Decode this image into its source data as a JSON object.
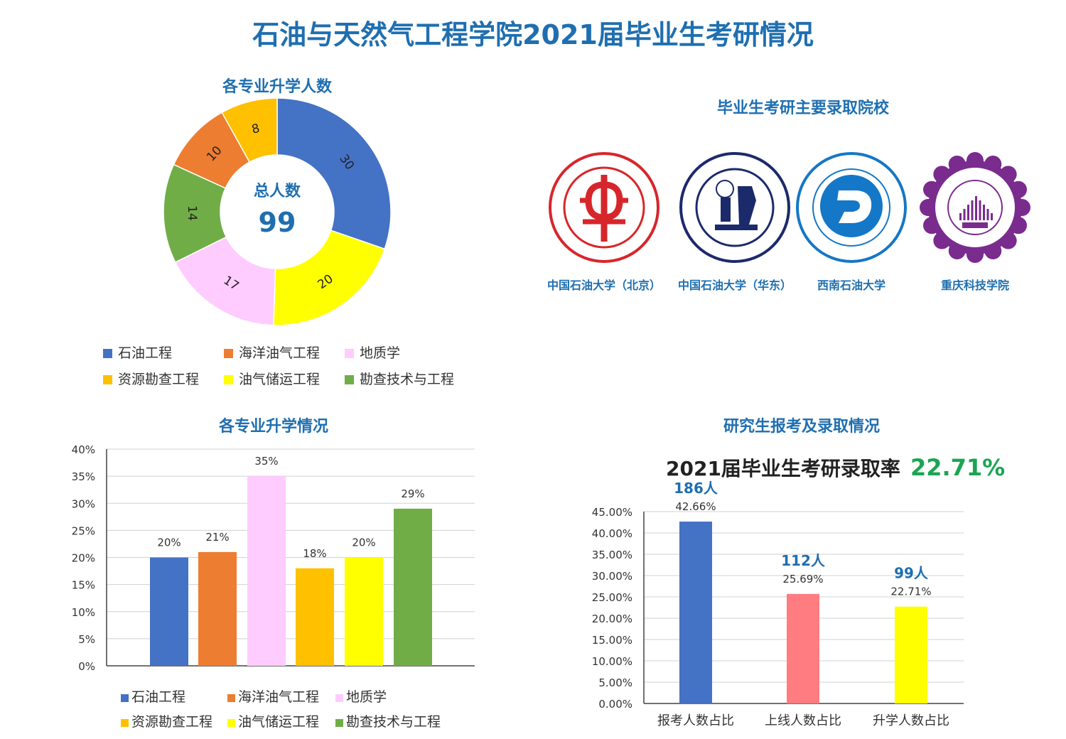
{
  "page_title": "石油与天然气工程学院2021届毕业生考研情况",
  "majors": [
    "石油工程",
    "海洋油气工程",
    "地质学",
    "资源勘查工程",
    "油气储运工程",
    "勘查技术与工程"
  ],
  "colors": {
    "石油工程": "#4472c4",
    "海洋油气工程": "#ed7d31",
    "地质学": "#ffccff",
    "资源勘查工程": "#ffc000",
    "油气储运工程": "#ffff00",
    "勘查技术与工程": "#70ad47",
    "title_blue": "#1f6fb0",
    "rate_green": "#1aa552"
  },
  "chart_data": [
    {
      "type": "pie",
      "title": "各专业升学人数",
      "center_label": "总人数",
      "center_value": "99",
      "slices": [
        {
          "name": "石油工程",
          "value": 30
        },
        {
          "name": "油气储运工程",
          "value": 20
        },
        {
          "name": "地质学",
          "value": 17
        },
        {
          "name": "勘查技术与工程",
          "value": 14
        },
        {
          "name": "海洋油气工程",
          "value": 10
        },
        {
          "name": "资源勘查工程",
          "value": 8
        }
      ],
      "legend": [
        "石油工程",
        "海洋油气工程",
        "地质学",
        "资源勘查工程",
        "油气储运工程",
        "勘查技术与工程"
      ],
      "legend_position": "bottom"
    },
    {
      "type": "bar",
      "title": "各专业升学情况",
      "categories": [
        "石油工程",
        "海洋油气工程",
        "地质学",
        "资源勘查工程",
        "油气储运工程",
        "勘查技术与工程"
      ],
      "values": [
        20,
        21,
        35,
        18,
        20,
        29
      ],
      "data_labels": [
        "20%",
        "21%",
        "35%",
        "18%",
        "20%",
        "29%"
      ],
      "ylim": [
        0,
        40
      ],
      "yticks": [
        "0%",
        "5%",
        "10%",
        "15%",
        "20%",
        "25%",
        "30%",
        "35%",
        "40%"
      ],
      "grid": true,
      "legend": [
        "石油工程",
        "海洋油气工程",
        "地质学",
        "资源勘查工程",
        "油气储运工程",
        "勘查技术与工程"
      ],
      "legend_position": "bottom"
    },
    {
      "type": "bar",
      "title": "研究生报考及录取情况",
      "headline_label": "2021届毕业生考研录取率",
      "headline_value": "22.71%",
      "categories": [
        "报考人数占比",
        "上线人数占比",
        "升学人数占比"
      ],
      "values": [
        42.66,
        25.69,
        22.71
      ],
      "data_labels": [
        "42.66%",
        "25.69%",
        "22.71%"
      ],
      "count_labels": [
        "186人",
        "112人",
        "99人"
      ],
      "bar_colors": [
        "#4472c4",
        "#ff7c80",
        "#ffff00"
      ],
      "ylim": [
        0,
        45
      ],
      "yticks": [
        "0.00%",
        "5.00%",
        "10.00%",
        "15.00%",
        "20.00%",
        "25.00%",
        "30.00%",
        "35.00%",
        "40.00%",
        "45.00%"
      ],
      "grid": true
    }
  ],
  "schools": {
    "title": "毕业生考研主要录取院校",
    "items": [
      {
        "name": "中国石油大学（北京）",
        "icon": "cup-beijing-seal-icon",
        "color": "#d7262b"
      },
      {
        "name": "中国石油大学（华东）",
        "icon": "upc-huadong-seal-icon",
        "color": "#1b2a6b"
      },
      {
        "name": "西南石油大学",
        "icon": "swpu-seal-icon",
        "color": "#1577c7"
      },
      {
        "name": "重庆科技学院",
        "icon": "cqust-seal-icon",
        "color": "#7a2b8e"
      }
    ]
  }
}
